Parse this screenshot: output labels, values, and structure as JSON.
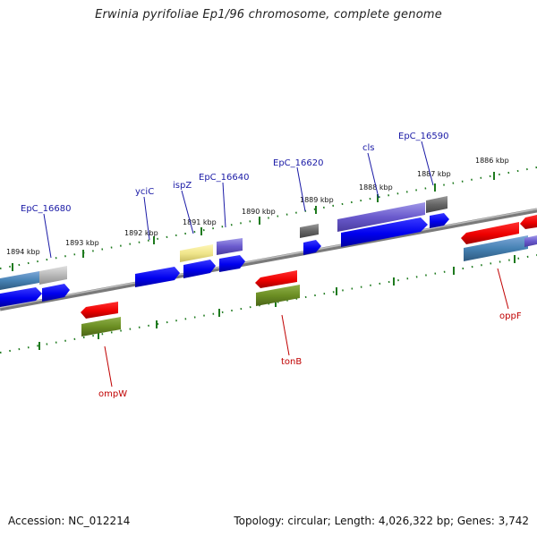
{
  "title": "Erwinia pyrifoliae Ep1/96 chromosome, complete genome",
  "footer": {
    "accession": "Accession: NC_012214",
    "summary": "Topology: circular; Length: 4,026,322 bp; Genes: 3,742"
  },
  "colors": {
    "backbone": "#8a8a8a",
    "tick": "#1e7a1e",
    "label_forward": "#1a1aa6",
    "label_reverse": "#c00000"
  },
  "kbp_labels": [
    "1894 kbp",
    "1893 kbp",
    "1892 kbp",
    "1891 kbp",
    "1890 kbp",
    "1889 kbp",
    "1888 kbp",
    "1887 kbp",
    "1886 kbp"
  ],
  "forward_labels": [
    "EpC_16680",
    "yciC",
    "ispZ",
    "EpC_16640",
    "EpC_16620",
    "cls",
    "EpC_16590"
  ],
  "reverse_labels": [
    "ompW",
    "tonB",
    "oppF"
  ]
}
